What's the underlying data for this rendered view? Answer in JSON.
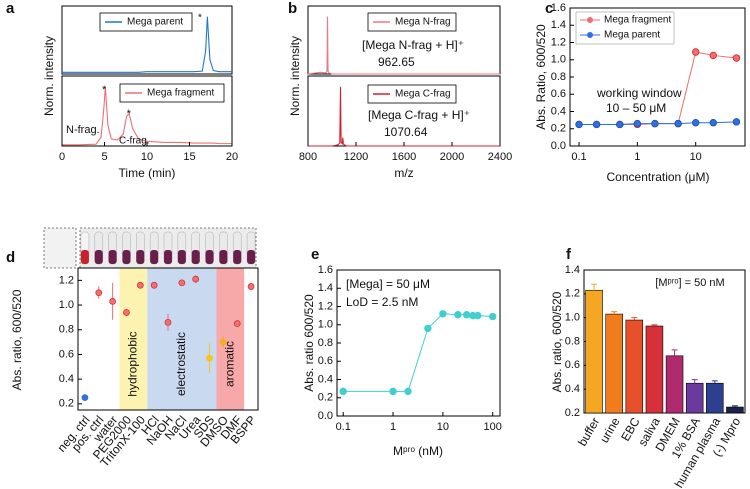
{
  "chart_data": [
    {
      "type": "line",
      "panel": "a",
      "x_label": "Time (min)",
      "y_label": "Norm. intensity",
      "x": [
        0,
        2,
        4,
        4.6,
        4.9,
        5.1,
        5.4,
        5.8,
        6.5,
        7.2,
        7.6,
        7.9,
        8.3,
        9,
        10,
        12,
        14,
        15.5,
        16.5,
        16.9,
        17.1,
        17.4,
        17.8,
        18.5,
        20
      ],
      "series": [
        {
          "name": "Mega parent",
          "color": "#1f77d0",
          "values": [
            0.03,
            0.03,
            0.03,
            0.03,
            0.03,
            0.03,
            0.03,
            0.03,
            0.03,
            0.03,
            0.03,
            0.03,
            0.03,
            0.03,
            0.04,
            0.04,
            0.04,
            0.04,
            0.05,
            0.4,
            1.0,
            0.25,
            0.06,
            0.04,
            0.04
          ]
        },
        {
          "name": "Mega fragment",
          "color": "#f07070",
          "values": [
            0.02,
            0.02,
            0.03,
            0.15,
            0.6,
            1.0,
            0.35,
            0.12,
            0.1,
            0.2,
            0.5,
            0.55,
            0.3,
            0.12,
            0.08,
            0.06,
            0.06,
            0.05,
            0.05,
            0.05,
            0.05,
            0.05,
            0.05,
            0.04,
            0.04
          ]
        }
      ],
      "xlim": [
        0,
        20
      ],
      "xticks": [
        0,
        5,
        10,
        15,
        20
      ],
      "ylim": [
        0,
        1.15
      ],
      "annotations": [
        "*",
        "*",
        "N-frag.",
        "*",
        "C-frag."
      ]
    },
    {
      "type": "line",
      "panel": "b",
      "x_label": "m/z",
      "y_label": "Norm. intensity",
      "x": [
        800,
        900,
        950,
        958,
        962.65,
        967,
        975,
        1000,
        1050,
        1065,
        1070.64,
        1076,
        1085,
        1090,
        1095,
        1120,
        1200,
        1400,
        1600,
        1800,
        2000,
        2200,
        2400
      ],
      "series": [
        {
          "name": "Mega N-frag",
          "color": "#ea7a8a",
          "values": [
            0,
            0.03,
            0.02,
            0.05,
            1,
            0.05,
            0.02,
            0,
            0,
            0,
            0,
            0,
            0,
            0,
            0,
            0,
            0,
            0,
            0,
            0,
            0,
            0,
            0
          ]
        },
        {
          "name": "Mega C-frag",
          "color": "#d42030",
          "values": [
            0,
            0,
            0,
            0,
            0,
            0,
            0,
            0,
            0.02,
            0.05,
            1,
            0.06,
            0.04,
            0.14,
            0.03,
            0,
            0,
            0,
            0,
            0,
            0,
            0,
            0
          ]
        }
      ],
      "xlim": [
        800,
        2400
      ],
      "xticks": [
        800,
        1200,
        1600,
        2000,
        2400
      ],
      "ylim": [
        0,
        1.15
      ],
      "annotations": [
        "[Mega N-frag + H]⁺",
        "962.65",
        "[Mega C-frag + H]⁺",
        "1070.64"
      ]
    },
    {
      "type": "line",
      "panel": "c",
      "x_label": "Concentration (μM)",
      "y_label": "Abs. Ratio, 600/520",
      "xscale": "log",
      "x": [
        0.1,
        0.2,
        0.5,
        1,
        2,
        5,
        10,
        20,
        50
      ],
      "series": [
        {
          "name": "Mega fragment",
          "color": "#f26d6d",
          "values": [
            0.25,
            0.25,
            0.25,
            0.25,
            0.26,
            0.26,
            1.09,
            1.05,
            1.02
          ]
        },
        {
          "name": "Mega parent",
          "color": "#2f6fdf",
          "values": [
            0.25,
            0.25,
            0.25,
            0.26,
            0.26,
            0.26,
            0.27,
            0.27,
            0.28
          ]
        }
      ],
      "xlim": [
        0.07,
        70
      ],
      "xticks": [
        0.1,
        1,
        10
      ],
      "ylim": [
        0,
        1.6
      ],
      "yticks": [
        {
          "value": 0,
          "label": "0.0"
        },
        0.2,
        0.4,
        0.6,
        0.8,
        {
          "value": 1,
          "label": "1.0"
        },
        1.2,
        1.4,
        1.6
      ],
      "annotations": [
        "working window",
        "10 – 50 μM"
      ]
    },
    {
      "type": "scatter",
      "panel": "d",
      "y_label": "Abs. ratio, 600/520",
      "categories": [
        "neg. ctrl",
        "pos. ctrl",
        "water",
        "PEG2000",
        "TritonX-100",
        "HCl",
        "NaOH",
        "NaCl",
        "Urea",
        "SDS",
        "DMSO",
        "DMF",
        "BSPP"
      ],
      "values": [
        0.25,
        1.1,
        1.03,
        0.94,
        1.16,
        1.16,
        0.86,
        1.18,
        1.21,
        0.57,
        0.7,
        0.85,
        1.15
      ],
      "errors": [
        0,
        0.05,
        0.15,
        0.03,
        0.02,
        0.02,
        0.07,
        0.02,
        0.03,
        0.12,
        0.05,
        0.01,
        0.03
      ],
      "colors": [
        "#2f6fdf",
        "#f07070",
        "#f07070",
        "#f07070",
        "#f07070",
        "#f07070",
        "#f07070",
        "#f07070",
        "#f07070",
        "#f5c518",
        "#f0b020",
        "#f07070",
        "#f07070"
      ],
      "shaded": [
        {
          "label": "hydrophobic",
          "from": "PEG2000",
          "to": "TritonX-100",
          "color": "#fdf3b0",
          "text_color": "#b86a10"
        },
        {
          "label": "electrostatic",
          "from": "HCl",
          "to": "SDS",
          "color": "#c9d9f0",
          "text_color": "#2f6fdf"
        },
        {
          "label": "aromatic",
          "from": "DMSO",
          "to": "DMF",
          "color": "#f7a8a8",
          "text_color": "#c0202c"
        }
      ],
      "ylim": [
        0.15,
        1.3
      ],
      "yticks": [
        0.2,
        0.4,
        0.6,
        0.8,
        {
          "value": 1,
          "label": "1.0"
        },
        1.2
      ]
    },
    {
      "type": "line",
      "panel": "e",
      "x_label": "Mᵖʳᵒ (nM)",
      "y_label": "Abs. ratio 600/520",
      "xscale": "log",
      "x": [
        0.1,
        1,
        2,
        5,
        10,
        20,
        30,
        40,
        50,
        100
      ],
      "series": [
        {
          "name": "Mega",
          "color": "#3fcfcf",
          "values": [
            0.27,
            0.27,
            0.27,
            0.96,
            1.12,
            1.11,
            1.11,
            1.1,
            1.1,
            1.09
          ]
        }
      ],
      "xlim": [
        0.075,
        140
      ],
      "xticks": [
        0.1,
        1,
        10,
        100
      ],
      "ylim": [
        0,
        1.6
      ],
      "yticks": [
        {
          "value": 0,
          "label": "0.0"
        },
        0.2,
        0.4,
        0.6,
        0.8,
        {
          "value": 1,
          "label": "1.0"
        },
        1.2,
        1.4,
        1.6
      ],
      "annotations": [
        "[Mega] = 50 μM",
        "LoD = 2.5 nM"
      ]
    },
    {
      "type": "bar",
      "panel": "f",
      "y_label": "Abs. ratio, 600/520",
      "categories": [
        "buffer",
        "urine",
        "EBC",
        "saliva",
        "DMEM",
        "1% BSA",
        "human plasma",
        "(-) Mpro"
      ],
      "values": [
        1.23,
        1.03,
        0.98,
        0.93,
        0.68,
        0.45,
        0.45,
        0.25
      ],
      "errors": [
        0.05,
        0.02,
        0.02,
        0.01,
        0.05,
        0.03,
        0.02,
        0.01
      ],
      "colors": [
        "#f5a623",
        "#f07c1e",
        "#e8502a",
        "#d6303a",
        "#b02a6e",
        "#6a3a9e",
        "#2d3f8f",
        "#1b1f4a"
      ],
      "ylim": [
        0.2,
        1.4
      ],
      "yticks": [
        0.2,
        0.4,
        0.6,
        0.8,
        {
          "value": 1,
          "label": "1.0"
        },
        1.2,
        1.4
      ],
      "annotations": [
        "[Mᵖʳᵒ] = 50 nM"
      ]
    }
  ]
}
